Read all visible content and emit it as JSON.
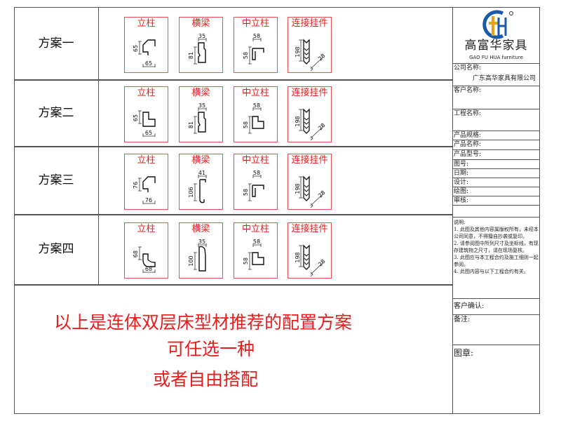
{
  "schemes": [
    {
      "label": "方案一",
      "parts": [
        {
          "title": "立柱",
          "shape": "post-chamfer",
          "dims": [
            "65",
            "65"
          ]
        },
        {
          "title": "横梁",
          "shape": "beam-notched",
          "dims": [
            "35",
            "81"
          ]
        },
        {
          "title": "中立柱",
          "shape": "mid-channel",
          "dims": [
            "58",
            "58"
          ]
        },
        {
          "title": "连接挂件",
          "shape": "hanger",
          "dims": [
            "198",
            "28"
          ]
        }
      ]
    },
    {
      "label": "方案二",
      "parts": [
        {
          "title": "立柱",
          "shape": "post-l",
          "dims": [
            "65",
            "65"
          ]
        },
        {
          "title": "横梁",
          "shape": "beam-notched",
          "dims": [
            "35",
            "81"
          ]
        },
        {
          "title": "中立柱",
          "shape": "mid-l",
          "dims": [
            "58",
            "58"
          ]
        },
        {
          "title": "连接挂件",
          "shape": "hanger",
          "dims": [
            "198",
            "28"
          ]
        }
      ]
    },
    {
      "label": "方案三",
      "parts": [
        {
          "title": "立柱",
          "shape": "post-chamfer",
          "dims": [
            "76",
            "76"
          ]
        },
        {
          "title": "横梁",
          "shape": "beam-hook",
          "dims": [
            "41",
            "106"
          ]
        },
        {
          "title": "中立柱",
          "shape": "mid-channel",
          "dims": [
            "58",
            "58"
          ]
        },
        {
          "title": "连接挂件",
          "shape": "hanger",
          "dims": [
            "198",
            "28"
          ]
        }
      ]
    },
    {
      "label": "方案四",
      "parts": [
        {
          "title": "立柱",
          "shape": "post-curve",
          "dims": [
            "68",
            "68"
          ]
        },
        {
          "title": "横梁",
          "shape": "beam-round",
          "dims": [
            "35",
            "100"
          ]
        },
        {
          "title": "中立柱",
          "shape": "mid-l",
          "dims": [
            "58",
            "58"
          ]
        },
        {
          "title": "连接挂件",
          "shape": "hanger",
          "dims": [
            "198",
            "28"
          ]
        }
      ]
    }
  ],
  "message": {
    "line1": "以上是连体双层床型材推荐的配置方案",
    "line2": "可任选一种",
    "line3": "或者自由搭配",
    "color": "#e81e1e"
  },
  "title_block": {
    "logo_cn": "高富华家具",
    "logo_en": "GAO FU HUA furniture",
    "logo_mark": "GFH",
    "company_label": "公司名称:",
    "company_value": "广东高华家具有限公司",
    "client_label": "客户名称:",
    "project_label": "工程名称:",
    "spec_label": "产品规格:",
    "name_label": "产品名称:",
    "model_label": "产品型号:",
    "drawing_no_label": "图号:",
    "date_label": "日期:",
    "design_label": "设计:",
    "draft_label": "绘图:",
    "review_label": "审核:",
    "notes_title": "说明:",
    "notes": [
      "1. 此图及其他内容属版权所有，未经本公司同意，不得擅自抄袭或复印。",
      "2. 请参阅图中所列尺寸及坐标线，有现存建筑物之尺寸，请在现场复核。",
      "3. 此图应与本工程合约及施工细则一起参阅。",
      "4. 此图内容与以下工程合约有关。"
    ],
    "confirm_label": "客户确认:",
    "remark_label": "备注:",
    "seal_label": "图章:"
  }
}
